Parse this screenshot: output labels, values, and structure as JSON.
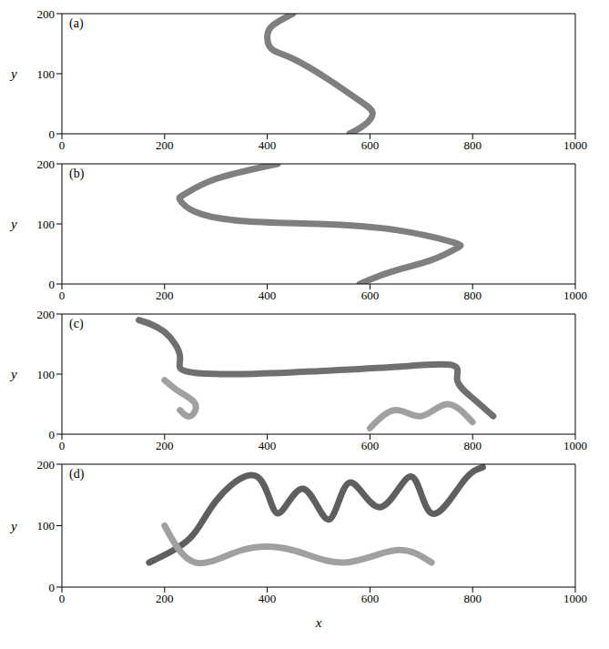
{
  "chart_data": [
    {
      "type": "line",
      "label": "(a)",
      "y_label": "y",
      "xlim": [
        0,
        1000
      ],
      "ylim": [
        0,
        200
      ],
      "xticks": [
        0,
        200,
        400,
        600,
        800,
        1000
      ],
      "yticks": [
        0,
        100,
        200
      ],
      "series": [
        {
          "color": "#7f7f7f",
          "x": [
            450,
            410,
            400,
            410,
            450,
            520,
            580,
            605,
            590,
            560
          ],
          "values": [
            200,
            180,
            160,
            140,
            125,
            90,
            55,
            35,
            15,
            0
          ]
        }
      ]
    },
    {
      "type": "line",
      "label": "(b)",
      "y_label": "y",
      "xlim": [
        0,
        1000
      ],
      "ylim": [
        0,
        200
      ],
      "xticks": [
        0,
        200,
        400,
        600,
        800,
        1000
      ],
      "yticks": [
        0,
        100,
        200
      ],
      "series": [
        {
          "color": "#7f7f7f",
          "x": [
            420,
            300,
            240,
            230,
            260,
            350,
            500,
            650,
            760,
            770,
            720,
            640,
            580
          ],
          "values": [
            200,
            175,
            150,
            140,
            120,
            105,
            100,
            90,
            70,
            60,
            40,
            20,
            0
          ]
        }
      ]
    },
    {
      "type": "line",
      "label": "(c)",
      "y_label": "y",
      "xlim": [
        0,
        1000
      ],
      "ylim": [
        0,
        200
      ],
      "xticks": [
        0,
        200,
        400,
        600,
        800,
        1000
      ],
      "yticks": [
        0,
        100,
        200
      ],
      "series": [
        {
          "color": "#6f6f6f",
          "x": [
            150,
            200,
            230,
            240,
            350,
            500,
            650,
            760,
            770,
            800,
            840
          ],
          "values": [
            190,
            170,
            130,
            105,
            100,
            105,
            112,
            115,
            90,
            60,
            30
          ]
        },
        {
          "color": "#a0a0a0",
          "x": [
            200,
            230,
            260,
            250,
            230
          ],
          "values": [
            90,
            70,
            50,
            30,
            40
          ]
        },
        {
          "color": "#a0a0a0",
          "x": [
            600,
            650,
            700,
            750,
            800
          ],
          "values": [
            10,
            40,
            30,
            50,
            20
          ]
        }
      ]
    },
    {
      "type": "line",
      "label": "(d)",
      "x_label": "x",
      "y_label": "y",
      "xlim": [
        0,
        1000
      ],
      "ylim": [
        0,
        200
      ],
      "xticks": [
        0,
        200,
        400,
        600,
        800,
        1000
      ],
      "yticks": [
        0,
        100,
        200
      ],
      "series": [
        {
          "color": "#5f5f5f",
          "x": [
            170,
            250,
            300,
            380,
            420,
            470,
            520,
            560,
            620,
            680,
            720,
            780,
            820
          ],
          "values": [
            40,
            80,
            140,
            180,
            120,
            160,
            110,
            170,
            130,
            180,
            120,
            170,
            195
          ]
        },
        {
          "color": "#a0a0a0",
          "x": [
            200,
            260,
            350,
            450,
            550,
            650,
            720
          ],
          "values": [
            100,
            40,
            60,
            60,
            40,
            60,
            40
          ]
        }
      ]
    }
  ]
}
